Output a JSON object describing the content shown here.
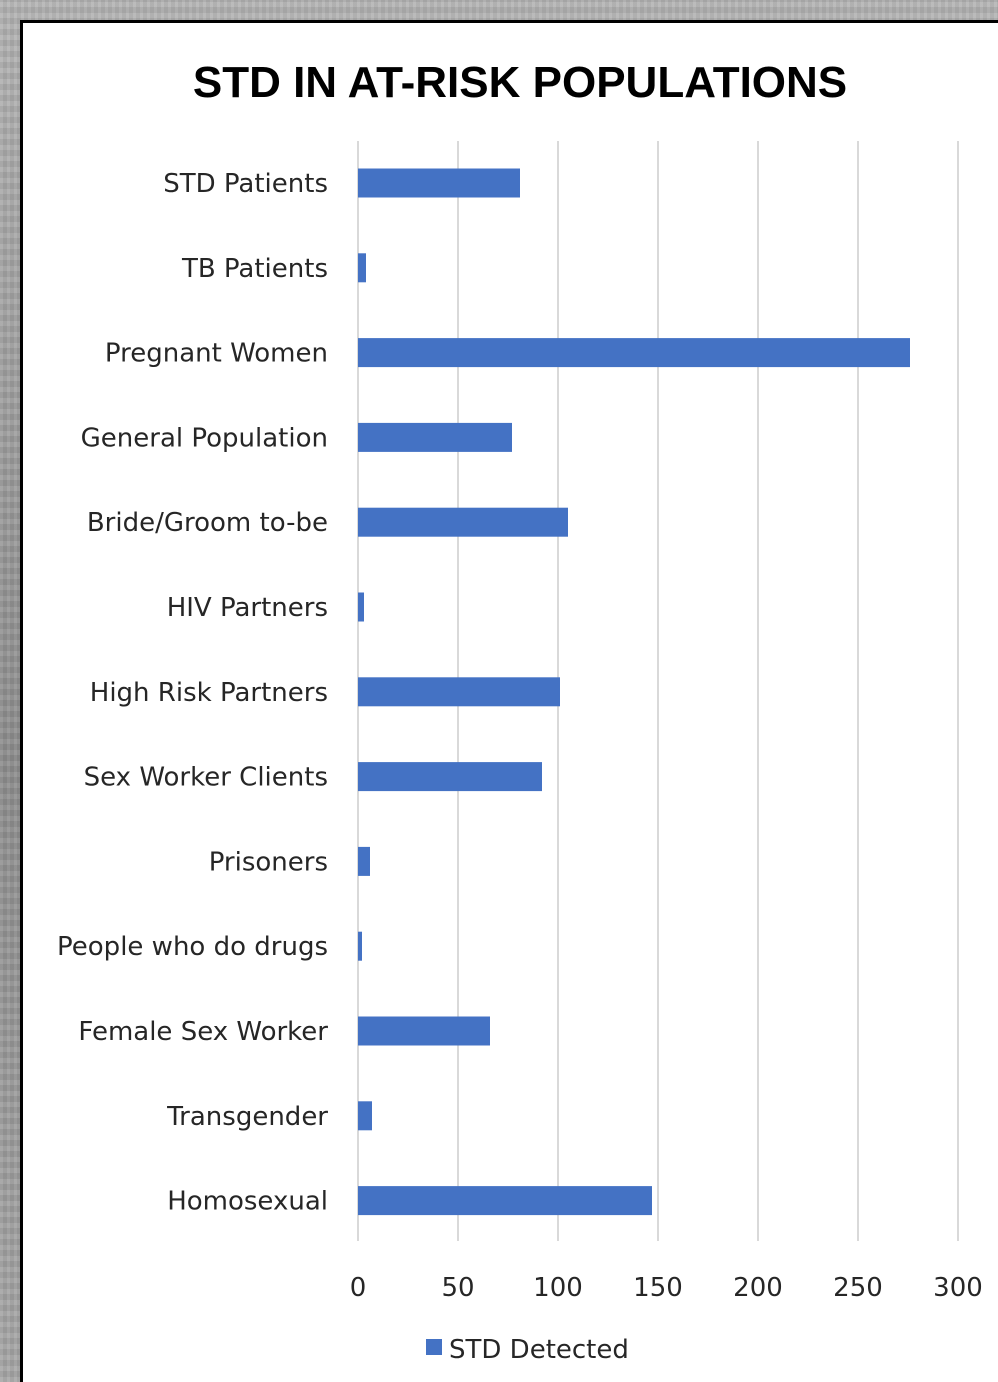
{
  "chart_data": {
    "type": "bar",
    "orientation": "horizontal",
    "title": "STD IN AT-RISK POPULATIONS",
    "categories": [
      "STD Patients",
      "TB Patients",
      "Pregnant Women",
      "General Population",
      "Bride/Groom to-be",
      "HIV Partners",
      "High Risk Partners",
      "Sex Worker Clients",
      "Prisoners",
      "People who do drugs",
      "Female Sex Worker",
      "Transgender",
      "Homosexual"
    ],
    "series": [
      {
        "name": "STD Detected",
        "color": "#4472c4",
        "values": [
          81,
          4,
          276,
          77,
          105,
          3,
          101,
          92,
          6,
          2,
          66,
          7,
          147
        ]
      }
    ],
    "xlim": [
      0,
      300
    ],
    "xticks": [
      0,
      50,
      100,
      150,
      200,
      250,
      300
    ],
    "grid": true,
    "legend_position": "bottom"
  }
}
